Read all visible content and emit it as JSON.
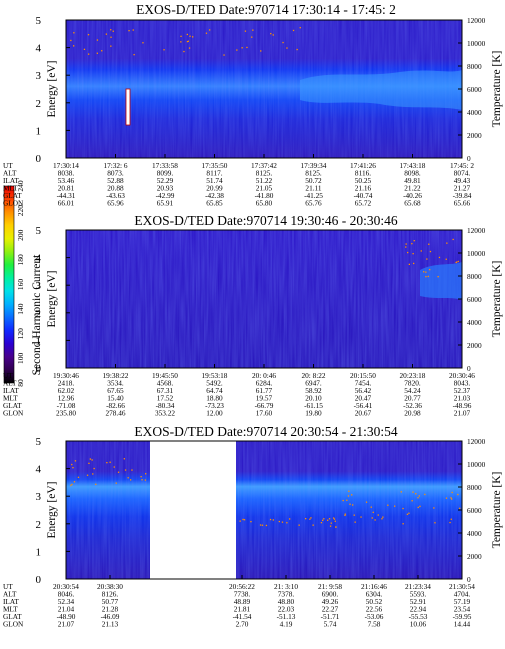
{
  "figure_name": "EXOS-D/TED",
  "colorbar": {
    "label": "Second Harmonic Current",
    "ticks": [
      "80",
      "100",
      "120",
      "140",
      "160",
      "180",
      "200",
      "220",
      "240"
    ],
    "range": [
      80,
      240
    ],
    "colors": [
      "#000000",
      "#300050",
      "#48008c",
      "#2a00d2",
      "#1028ff",
      "#0a6cff",
      "#00b0ff",
      "#00e0e8",
      "#00f0a0",
      "#20f040",
      "#90f010",
      "#e8f000",
      "#ffd000",
      "#ff9000",
      "#ff4000",
      "#e80000"
    ]
  },
  "chart_data": [
    {
      "type": "heatmap",
      "title": "EXOS-D/TED   Date:970714  17:30:14 - 17:45: 2",
      "ylabel": "Energy [eV]",
      "y2label": "Temperature [K]",
      "ylim": [
        0,
        5
      ],
      "y2lim": [
        0,
        12000
      ],
      "yticks": [
        "0",
        "1",
        "2",
        "3",
        "4",
        "5"
      ],
      "y2ticks": [
        "0",
        "2000",
        "4000",
        "6000",
        "8000",
        "10000",
        "12000"
      ],
      "orbit_table": {
        "row_labels": [
          "UT",
          "ALT",
          "ILAT",
          "MLT",
          "GLAT",
          "GLON"
        ],
        "columns": [
          [
            "17:30:14",
            "8038.",
            "53.46",
            "20.81",
            "-44.31",
            "66.01"
          ],
          [
            "17:32: 6",
            "8073.",
            "52.88",
            "20.88",
            "-43.63",
            "65.96"
          ],
          [
            "17:33:58",
            "8099.",
            "52.29",
            "20.93",
            "-42.99",
            "65.91"
          ],
          [
            "17:35:50",
            "8117.",
            "51.74",
            "20.99",
            "-42.38",
            "65.85"
          ],
          [
            "17:37:42",
            "8125.",
            "51.22",
            "21.05",
            "-41.80",
            "65.80"
          ],
          [
            "17:39:34",
            "8125.",
            "50.72",
            "21.11",
            "-41.25",
            "65.76"
          ],
          [
            "17:41:26",
            "8116.",
            "50.25",
            "21.16",
            "-40.74",
            "65.72"
          ],
          [
            "17:43:18",
            "8098.",
            "49.81",
            "21.22",
            "-40.26",
            "65.68"
          ],
          [
            "17:45: 2",
            "8074.",
            "49.43",
            "21.27",
            "-39.84",
            "65.66"
          ]
        ]
      },
      "data_gaps": []
    },
    {
      "type": "heatmap",
      "title": "EXOS-D/TED   Date:970714  19:30:46 - 20:30:46",
      "ylabel": "Energy [eV]",
      "y2label": "Temperature [K]",
      "ylim": [
        0,
        5
      ],
      "y2lim": [
        0,
        12000
      ],
      "yticks": [
        "0",
        "1",
        "2",
        "3",
        "4",
        "5"
      ],
      "y2ticks": [
        "0",
        "2000",
        "4000",
        "6000",
        "8000",
        "10000",
        "12000"
      ],
      "orbit_table": {
        "row_labels": [
          "UT",
          "ALT",
          "ILAT",
          "MLT",
          "GLAT",
          "GLON"
        ],
        "columns": [
          [
            "19:30:46",
            "2418.",
            "62.02",
            "12.96",
            "-71.08",
            "235.80"
          ],
          [
            "19:38:22",
            "3534.",
            "67.65",
            "15.40",
            "-82.66",
            "278.46"
          ],
          [
            "19:45:50",
            "4568.",
            "67.31",
            "17.52",
            "-80.34",
            "353.22"
          ],
          [
            "19:53:18",
            "5492.",
            "64.74",
            "18.80",
            "-73.23",
            "12.00"
          ],
          [
            "20: 0:46",
            "6284.",
            "61.77",
            "19.57",
            "-66.79",
            "17.60"
          ],
          [
            "20: 8:22",
            "6947.",
            "58.92",
            "20.10",
            "-61.15",
            "19.80"
          ],
          [
            "20:15:50",
            "7454.",
            "56.42",
            "20.47",
            "-56.41",
            "20.67"
          ],
          [
            "20:23:18",
            "7820.",
            "54.24",
            "20.77",
            "-52.36",
            "20.98"
          ],
          [
            "20:30:46",
            "8043.",
            "52.37",
            "21.03",
            "-48.96",
            "21.07"
          ]
        ]
      },
      "data_gaps": []
    },
    {
      "type": "heatmap",
      "title": "EXOS-D/TED   Date:970714  20:30:54 - 21:30:54",
      "ylabel": "Energy [eV]",
      "y2label": "Temperature [K]",
      "ylim": [
        0,
        5
      ],
      "y2lim": [
        0,
        12000
      ],
      "yticks": [
        "0",
        "1",
        "2",
        "3",
        "4",
        "5"
      ],
      "y2ticks": [
        "0",
        "2000",
        "4000",
        "6000",
        "8000",
        "10000",
        "12000"
      ],
      "orbit_table": {
        "row_labels": [
          "UT",
          "ALT",
          "ILAT",
          "MLT",
          "GLAT",
          "GLON"
        ],
        "columns": [
          [
            "20:30:54",
            "8046.",
            "52.34",
            "21.04",
            "-48.90",
            "21.07"
          ],
          [
            "20:38:30",
            "8126.",
            "50.77",
            "21.28",
            "-46.09",
            "21.13"
          ],
          [
            "",
            "",
            "",
            "",
            "",
            ""
          ],
          [
            "",
            "",
            "",
            "",
            "",
            ""
          ],
          [
            "20:56:22",
            "7738.",
            "48.89",
            "21.81",
            "-41.54",
            "2.70"
          ],
          [
            "21: 3:10",
            "7378.",
            "48.80",
            "22.03",
            "-51.13",
            "4.19"
          ],
          [
            "21: 9:58",
            "6900.",
            "49.26",
            "22.27",
            "-51.71",
            "5.74"
          ],
          [
            "21:16:46",
            "6304.",
            "50.52",
            "22.56",
            "-53.06",
            "7.58"
          ],
          [
            "21:23:34",
            "5593.",
            "52.91",
            "22.94",
            "-55.53",
            "10.06"
          ],
          [
            "21:30:54",
            "4704.",
            "57.19",
            "23.54",
            "-59.95",
            "14.44"
          ]
        ]
      },
      "data_gaps": [
        {
          "ut_start": "20:40",
          "ut_end": "20:56:22"
        }
      ]
    }
  ]
}
